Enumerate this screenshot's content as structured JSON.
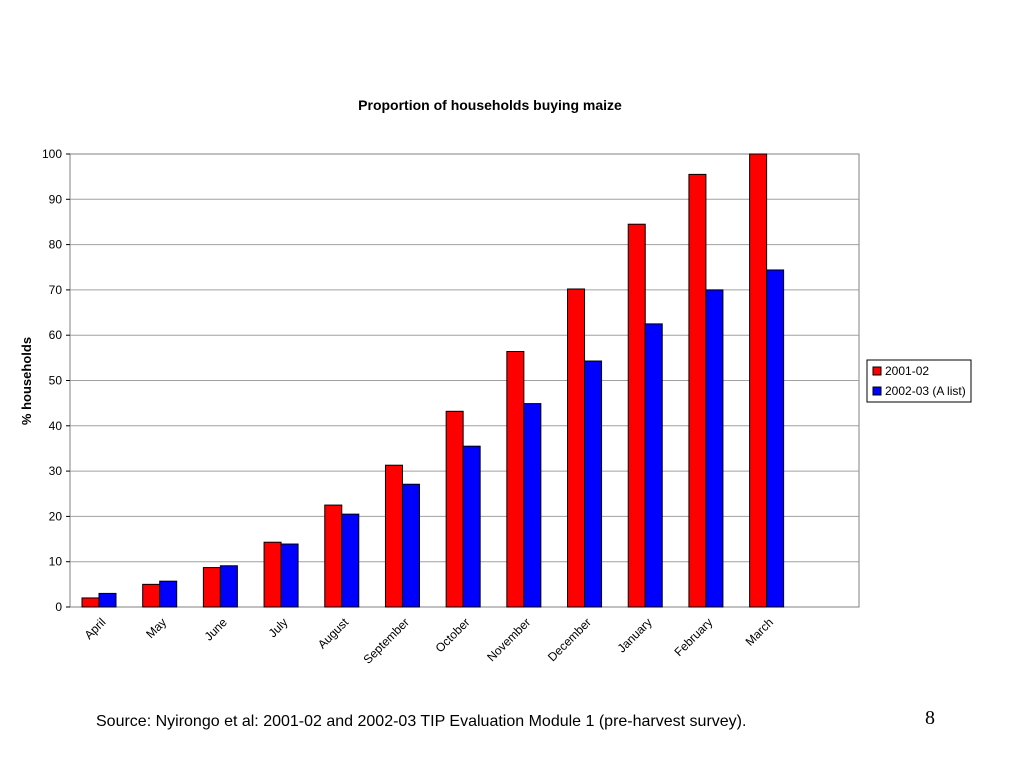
{
  "slide": {
    "source": "Source: Nyirongo et al: 2001-02 and 2002-03 TIP Evaluation Module 1 (pre-harvest survey).",
    "page_number": "8"
  },
  "chart_data": {
    "type": "bar",
    "title": "Proportion of households buying maize",
    "xlabel": "",
    "ylabel": "% households",
    "ylim": [
      0,
      100
    ],
    "yticks": [
      "0",
      "10",
      "20",
      "30",
      "40",
      "50",
      "60",
      "70",
      "80",
      "90",
      "100"
    ],
    "grid": true,
    "legend_position": "right",
    "categories": [
      "April",
      "May",
      "June",
      "July",
      "August",
      "September",
      "October",
      "November",
      "December",
      "January",
      "February",
      "March"
    ],
    "series": [
      {
        "name": "2001-02",
        "color": "#ff0000",
        "values": [
          2,
          5,
          8.7,
          14.3,
          22.5,
          31.3,
          43.2,
          56.4,
          70.2,
          84.5,
          95.5,
          100
        ]
      },
      {
        "name": "2002-03 (A list)",
        "color": "#0000ff",
        "values": [
          3,
          5.7,
          9.1,
          13.9,
          20.5,
          27.1,
          35.5,
          44.9,
          54.3,
          62.5,
          70,
          74.4
        ]
      }
    ]
  }
}
